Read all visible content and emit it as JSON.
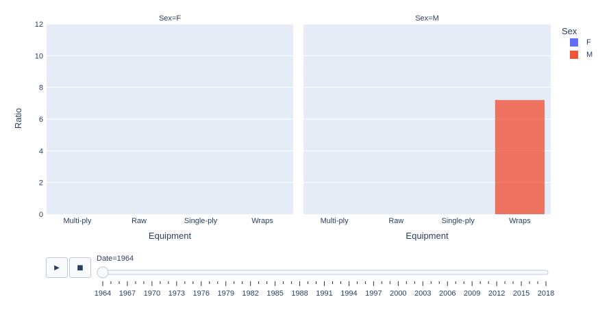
{
  "chart_data": {
    "type": "bar",
    "ylabel": "Ratio",
    "xlabel": "Equipment",
    "ylim": [
      0,
      12
    ],
    "yticks": [
      0,
      2,
      4,
      6,
      8,
      10,
      12
    ],
    "categories": [
      "Multi-ply",
      "Raw",
      "Single-ply",
      "Wraps"
    ],
    "facets": [
      {
        "title": "Sex=F",
        "values": [
          0,
          0,
          0,
          0
        ]
      },
      {
        "title": "Sex=M",
        "values": [
          0,
          0,
          0,
          7.2
        ]
      }
    ],
    "legend": {
      "title": "Sex",
      "placement": "top-right",
      "items": [
        {
          "name": "F",
          "color": "#636efa"
        },
        {
          "name": "M",
          "color": "#ef553b"
        }
      ]
    },
    "grid": true
  },
  "controls": {
    "play_icon": "play-icon",
    "stop_icon": "stop-icon",
    "slider_label": "Date=1964",
    "current_index": 0,
    "years": [
      "1964",
      "1967",
      "1970",
      "1973",
      "1976",
      "1979",
      "1982",
      "1985",
      "1988",
      "1991",
      "1994",
      "1997",
      "2000",
      "2003",
      "2006",
      "2009",
      "2012",
      "2015",
      "2018"
    ]
  },
  "colors": {
    "plot_bg": "#e5ecf6",
    "grid": "#ffffff",
    "bar_M": "#ef553b"
  }
}
